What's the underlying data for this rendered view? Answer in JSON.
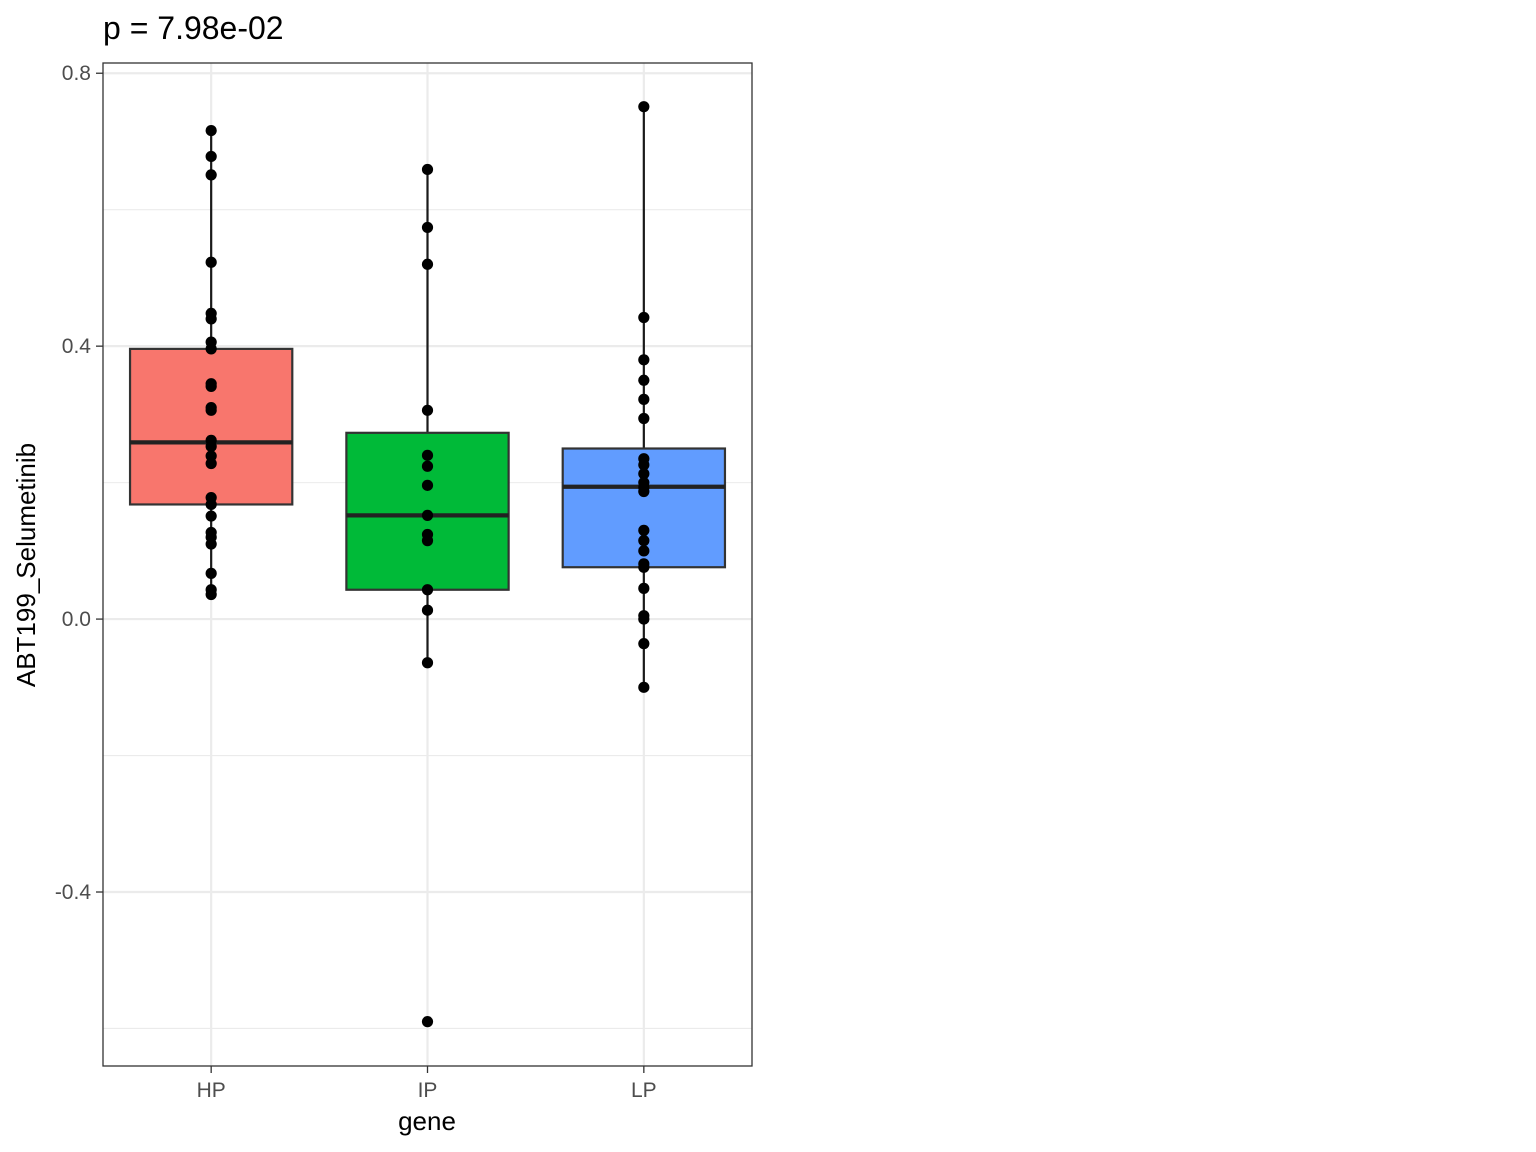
{
  "chart_data": {
    "type": "box",
    "title": "p = 7.98e-02",
    "xlabel": "gene",
    "ylabel": "ABT199_Selumetinib",
    "categories": [
      "HP",
      "IP",
      "LP"
    ],
    "ylim": [
      -0.655,
      0.815
    ],
    "yticks": [
      0.8,
      0.4,
      0.0,
      -0.4
    ],
    "ytick_labels": [
      "0.8",
      "0.4",
      "0.0",
      "-0.4"
    ],
    "grid": true,
    "legend": "none",
    "colors": {
      "HP": "#F8766D",
      "IP": "#00BA38",
      "LP": "#619CFF"
    },
    "boxes": [
      {
        "category": "HP",
        "q1": 0.168,
        "median": 0.259,
        "q3": 0.396,
        "whisker_low": 0.036,
        "whisker_high": 0.716
      },
      {
        "category": "IP",
        "q1": 0.043,
        "median": 0.152,
        "q3": 0.273,
        "whisker_low": -0.064,
        "whisker_high": 0.659
      },
      {
        "category": "LP",
        "q1": 0.076,
        "median": 0.194,
        "q3": 0.25,
        "whisker_low": -0.1,
        "whisker_high": 0.751
      }
    ],
    "points": {
      "HP": [
        0.716,
        0.678,
        0.651,
        0.523,
        0.448,
        0.44,
        0.406,
        0.396,
        0.345,
        0.341,
        0.31,
        0.306,
        0.262,
        0.253,
        0.239,
        0.228,
        0.178,
        0.168,
        0.151,
        0.127,
        0.12,
        0.11,
        0.067,
        0.043,
        0.036
      ],
      "IP": [
        0.659,
        0.574,
        0.52,
        0.306,
        0.24,
        0.224,
        0.196,
        0.152,
        0.124,
        0.115,
        0.043,
        0.013,
        -0.064,
        -0.59
      ],
      "LP": [
        0.751,
        0.442,
        0.38,
        0.35,
        0.322,
        0.294,
        0.235,
        0.226,
        0.213,
        0.2,
        0.193,
        0.187,
        0.13,
        0.115,
        0.1,
        0.081,
        0.076,
        0.045,
        0.005,
        0.0,
        -0.036,
        -0.1
      ]
    }
  }
}
